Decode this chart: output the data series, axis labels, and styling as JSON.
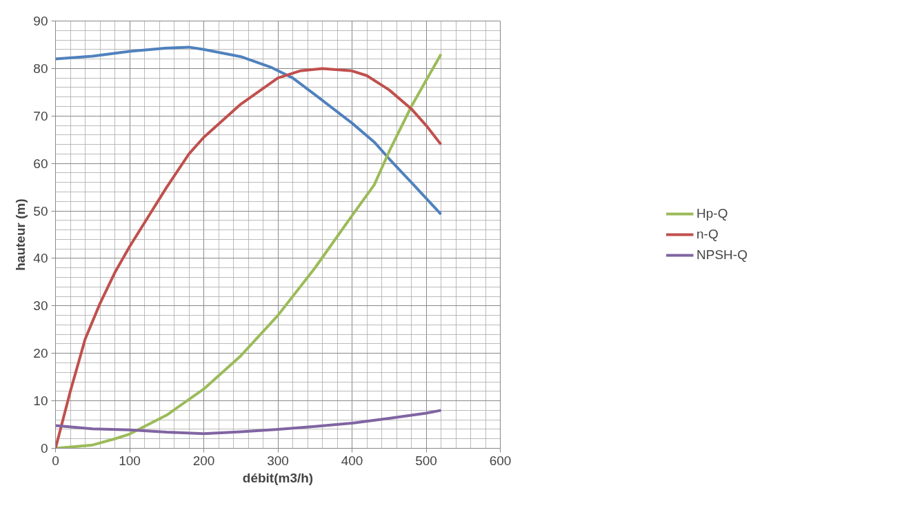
{
  "chart_data": {
    "type": "line",
    "xlabel": "débit(m3/h)",
    "ylabel": "hauteur (m)",
    "xlim": [
      0,
      600
    ],
    "xticks": [
      0,
      100,
      200,
      300,
      400,
      500,
      600
    ],
    "ylim": [
      0,
      90
    ],
    "yticks": [
      0,
      10,
      20,
      30,
      40,
      50,
      60,
      70,
      80,
      90
    ],
    "grid": true,
    "legend": "right",
    "marker": "none",
    "line_style": "solid",
    "series": [
      {
        "color": "#4f81bd",
        "x": [
          0,
          50,
          100,
          150,
          180,
          200,
          250,
          290,
          320,
          350,
          400,
          430,
          450,
          480,
          520
        ],
        "values": [
          82,
          82.6,
          83.6,
          84.3,
          84.5,
          84,
          82.5,
          80.3,
          78,
          74.5,
          68.5,
          64.5,
          61,
          56,
          49.3
        ]
      },
      {
        "name": "Hp-Q",
        "color": "#9bbb59",
        "x": [
          0,
          50,
          80,
          100,
          150,
          200,
          250,
          300,
          350,
          400,
          430,
          450,
          480,
          500,
          520
        ],
        "values": [
          0,
          0.7,
          2,
          3,
          7,
          12.5,
          19.5,
          28,
          38,
          49,
          55.5,
          62.5,
          72,
          77.5,
          83
        ]
      },
      {
        "name": "n-Q",
        "color": "#c0504d",
        "x": [
          0,
          20,
          40,
          60,
          80,
          100,
          130,
          150,
          180,
          200,
          250,
          300,
          330,
          360,
          400,
          420,
          450,
          480,
          500,
          520
        ],
        "values": [
          0,
          12,
          23,
          30.5,
          37,
          42.5,
          50,
          55,
          62,
          65.5,
          72.5,
          78,
          79.5,
          80,
          79.5,
          78.5,
          75.5,
          71.5,
          68,
          64
        ]
      },
      {
        "name": "NPSH-Q",
        "color": "#8064a2",
        "x": [
          0,
          50,
          100,
          150,
          200,
          250,
          300,
          350,
          400,
          450,
          500,
          520
        ],
        "values": [
          4.8,
          4.1,
          3.9,
          3.4,
          3.1,
          3.5,
          4,
          4.6,
          5.3,
          6.3,
          7.4,
          8
        ]
      }
    ]
  }
}
